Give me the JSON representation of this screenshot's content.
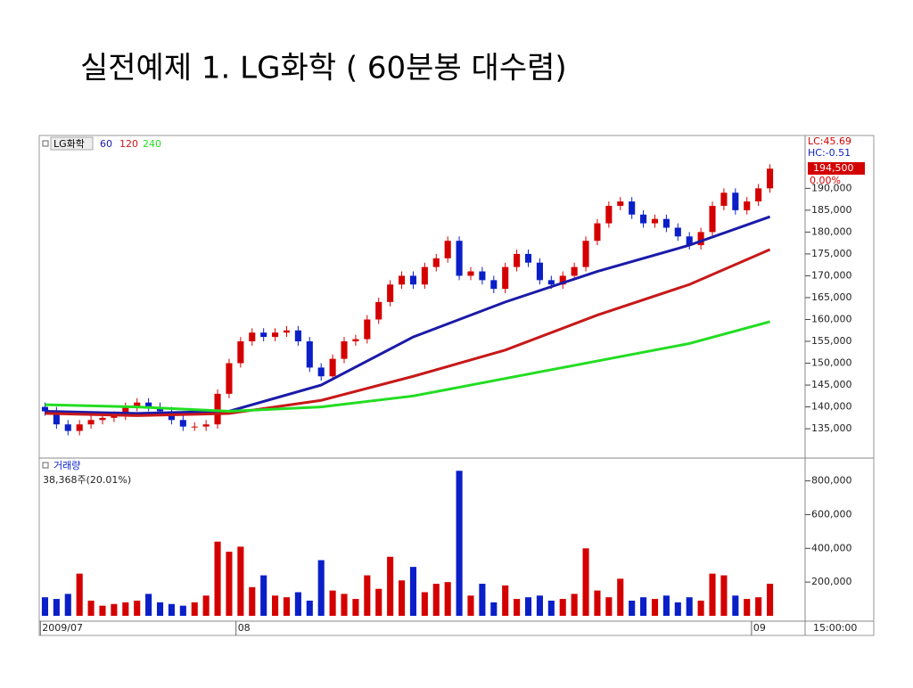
{
  "chart_data": {
    "type": "candlestick",
    "title": "실전예제 1. LG화학 ( 60분봉 대수렴)",
    "instrument": "LG화학",
    "xlim": [
      -0.5,
      63.5
    ],
    "xticks": [
      {
        "value": -0.4,
        "label": "2009/07"
      },
      {
        "value": 16.6,
        "label": "08"
      },
      {
        "value": 61.4,
        "label": "09"
      }
    ],
    "ylim": [
      128700,
      202100
    ],
    "yticks": [
      {
        "value": 135000,
        "label": "135,000"
      },
      {
        "value": 140000,
        "label": "140,000"
      },
      {
        "value": 145000,
        "label": "145,000"
      },
      {
        "value": 150000,
        "label": "150,000"
      },
      {
        "value": 155000,
        "label": "155,000"
      },
      {
        "value": 160000,
        "label": "160,000"
      },
      {
        "value": 165000,
        "label": "165,000"
      },
      {
        "value": 170000,
        "label": "170,000"
      },
      {
        "value": 175000,
        "label": "175,000"
      },
      {
        "value": 180000,
        "label": "180,000"
      },
      {
        "value": 185000,
        "label": "185,000"
      },
      {
        "value": 190000,
        "label": "190,000"
      }
    ],
    "up_color": "#d40000",
    "down_color": "#0a1fc8",
    "open": [
      140000,
      139000,
      136000,
      134500,
      136000,
      137000,
      137500,
      138000,
      140000,
      141000,
      140000,
      139000,
      137000,
      135500,
      135500,
      136000,
      143000,
      150000,
      155000,
      157000,
      156000,
      157000,
      157500,
      155000,
      149000,
      147000,
      151000,
      155000,
      155500,
      160000,
      164000,
      168000,
      170000,
      168000,
      172000,
      174000,
      178000,
      170000,
      171000,
      169000,
      167000,
      172000,
      175000,
      173000,
      169000,
      168000,
      170000,
      172000,
      178000,
      182000,
      186000,
      187000,
      184000,
      182000,
      183000,
      181000,
      179000,
      177000,
      180000,
      186000,
      189000,
      185000,
      187000,
      190000
    ],
    "high": [
      141000,
      140000,
      137000,
      137000,
      138000,
      138500,
      139000,
      141000,
      142000,
      142000,
      141000,
      140000,
      138000,
      136500,
      137000,
      144000,
      151000,
      156000,
      158000,
      158000,
      158000,
      158500,
      158500,
      156000,
      150000,
      152000,
      156000,
      156500,
      161000,
      165000,
      169000,
      171000,
      171000,
      173000,
      175000,
      179000,
      179000,
      172000,
      172000,
      170000,
      173000,
      176000,
      176000,
      174000,
      170000,
      171000,
      173000,
      179000,
      183000,
      187000,
      188000,
      188000,
      185000,
      184000,
      184000,
      182000,
      180000,
      181000,
      187000,
      190000,
      190000,
      188000,
      191000,
      195500
    ],
    "low": [
      138000,
      135000,
      133500,
      133500,
      135000,
      136000,
      136500,
      137000,
      139000,
      139000,
      138000,
      136000,
      134500,
      134500,
      134500,
      135000,
      142000,
      149000,
      154000,
      155000,
      155000,
      156000,
      154000,
      148000,
      146000,
      146000,
      150000,
      154000,
      154500,
      159000,
      163000,
      167000,
      167000,
      167000,
      171000,
      173000,
      169000,
      169000,
      168000,
      166000,
      166000,
      171000,
      172000,
      168000,
      167000,
      167000,
      169000,
      171000,
      177000,
      181000,
      185000,
      183000,
      181000,
      181000,
      180000,
      178000,
      176000,
      176000,
      179000,
      185000,
      184000,
      184000,
      186000,
      189000
    ],
    "close": [
      139000,
      136000,
      134500,
      136000,
      137000,
      137500,
      138000,
      140000,
      141000,
      140000,
      139000,
      137000,
      135500,
      135500,
      136000,
      143000,
      150000,
      155000,
      157000,
      156000,
      157000,
      157500,
      155000,
      149000,
      147000,
      151000,
      155000,
      155500,
      160000,
      164000,
      168000,
      170000,
      168000,
      172000,
      174000,
      178000,
      170000,
      171000,
      169000,
      167000,
      172000,
      175000,
      173000,
      169000,
      168000,
      170000,
      172000,
      178000,
      182000,
      186000,
      187000,
      184000,
      182000,
      183000,
      181000,
      179000,
      177000,
      180000,
      186000,
      189000,
      185000,
      187000,
      190000,
      194500
    ],
    "moving_averages": [
      {
        "name": "60",
        "color": "#1a1aa8",
        "x": [
          0,
          8,
          16,
          24,
          32,
          40,
          48,
          56,
          63
        ],
        "values": [
          139000,
          138500,
          139000,
          145000,
          156000,
          164000,
          171000,
          177000,
          183500
        ]
      },
      {
        "name": "120",
        "color": "#c81818",
        "x": [
          0,
          8,
          16,
          24,
          32,
          40,
          48,
          56,
          63
        ],
        "values": [
          138500,
          138000,
          138500,
          141500,
          147000,
          153000,
          161000,
          168000,
          176000
        ]
      },
      {
        "name": "240",
        "color": "#22dd22",
        "x": [
          0,
          8,
          16,
          24,
          32,
          40,
          48,
          56,
          63
        ],
        "values": [
          140500,
          140000,
          139000,
          140000,
          142500,
          146500,
          150500,
          154500,
          159500
        ]
      }
    ],
    "price_info": {
      "lc": "LC:45.69",
      "hc": "HC:-0.51",
      "last": "194,500",
      "change": "0.00%"
    },
    "volume": {
      "title": "거래량",
      "info": "38,368주(20.01%)",
      "ylim": [
        0,
        930000
      ],
      "yticks": [
        {
          "value": 200000,
          "label": "200,000"
        },
        {
          "value": 400000,
          "label": "400,000"
        },
        {
          "value": 600000,
          "label": "600,000"
        },
        {
          "value": 800000,
          "label": "800,000"
        }
      ],
      "values": [
        110000,
        100000,
        130000,
        250000,
        90000,
        60000,
        70000,
        80000,
        90000,
        130000,
        80000,
        70000,
        60000,
        80000,
        120000,
        440000,
        380000,
        410000,
        170000,
        240000,
        120000,
        110000,
        140000,
        90000,
        330000,
        150000,
        130000,
        100000,
        240000,
        160000,
        350000,
        210000,
        290000,
        140000,
        190000,
        200000,
        860000,
        120000,
        190000,
        80000,
        180000,
        100000,
        110000,
        120000,
        90000,
        100000,
        130000,
        400000,
        150000,
        110000,
        220000,
        90000,
        110000,
        100000,
        120000,
        80000,
        110000,
        90000,
        250000,
        240000,
        120000,
        100000,
        110000,
        190000
      ]
    },
    "time_label": "15:00:00"
  }
}
